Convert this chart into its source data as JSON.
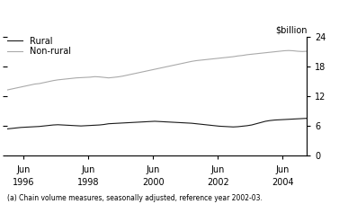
{
  "ylabel": "$billion",
  "footnote": "(a) Chain volume measures, seasonally adjusted, reference year 2002-03.",
  "legend": [
    "Rural",
    "Non-rural"
  ],
  "line_colors": [
    "#1a1a1a",
    "#aaaaaa"
  ],
  "ylim": [
    0,
    24
  ],
  "yticks": [
    0,
    6,
    12,
    18,
    24
  ],
  "xtick_years": [
    1996,
    1998,
    2000,
    2002,
    2004
  ],
  "x_start_year": 1995.5,
  "x_end_year": 2004.75,
  "rural_data": [
    5.3,
    5.4,
    5.5,
    5.6,
    5.65,
    5.7,
    5.75,
    5.8,
    5.9,
    6.0,
    6.1,
    6.15,
    6.1,
    6.05,
    6.0,
    5.95,
    5.9,
    5.95,
    6.0,
    6.05,
    6.1,
    6.2,
    6.35,
    6.4,
    6.45,
    6.5,
    6.55,
    6.6,
    6.65,
    6.7,
    6.75,
    6.8,
    6.85,
    6.8,
    6.75,
    6.7,
    6.65,
    6.6,
    6.55,
    6.5,
    6.45,
    6.35,
    6.25,
    6.15,
    6.05,
    5.95,
    5.85,
    5.8,
    5.75,
    5.7,
    5.75,
    5.85,
    5.95,
    6.1,
    6.35,
    6.6,
    6.85,
    7.0,
    7.1,
    7.15,
    7.2,
    7.25,
    7.3,
    7.35,
    7.4,
    7.45
  ],
  "nonrural_data": [
    13.2,
    13.4,
    13.6,
    13.8,
    14.0,
    14.2,
    14.4,
    14.5,
    14.7,
    14.9,
    15.1,
    15.25,
    15.35,
    15.45,
    15.55,
    15.65,
    15.7,
    15.75,
    15.8,
    15.9,
    15.85,
    15.75,
    15.65,
    15.75,
    15.85,
    16.0,
    16.2,
    16.4,
    16.6,
    16.8,
    17.0,
    17.2,
    17.4,
    17.6,
    17.8,
    18.0,
    18.2,
    18.4,
    18.6,
    18.8,
    19.0,
    19.15,
    19.25,
    19.35,
    19.45,
    19.55,
    19.65,
    19.75,
    19.85,
    19.95,
    20.1,
    20.2,
    20.35,
    20.45,
    20.55,
    20.65,
    20.75,
    20.85,
    20.95,
    21.05,
    21.15,
    21.2,
    21.15,
    21.05,
    21.0,
    21.05
  ]
}
